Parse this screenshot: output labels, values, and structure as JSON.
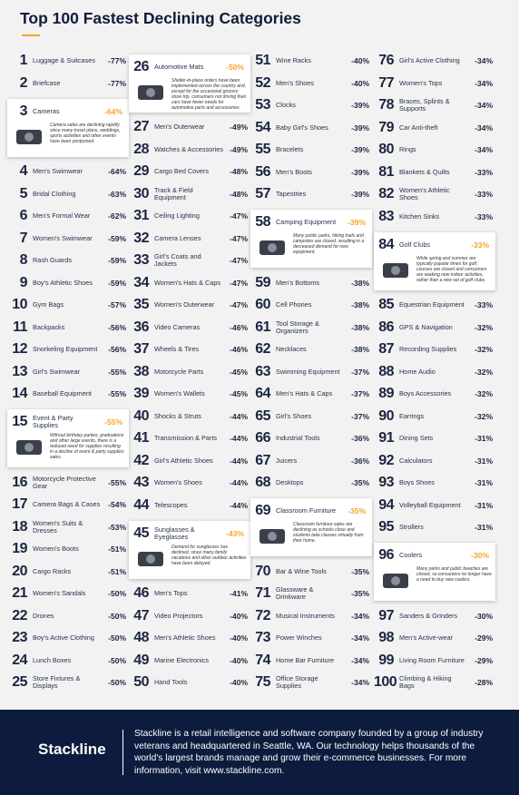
{
  "title": "Top 100 Fastest Declining Categories",
  "items": [
    {
      "rank": 1,
      "name": "Luggage & Suitcases",
      "change": "-77%"
    },
    {
      "rank": 2,
      "name": "Briefcase",
      "change": "-77%"
    },
    {
      "rank": 3,
      "name": "Cameras",
      "change": "-64%",
      "description": "Camera sales are declining rapidly since many travel plans, weddings, sports activities and other events have been postponed."
    },
    {
      "rank": 4,
      "name": "Men's Swimwear",
      "change": "-64%"
    },
    {
      "rank": 5,
      "name": "Bridal Clothing",
      "change": "-63%"
    },
    {
      "rank": 6,
      "name": "Men's Formal Wear",
      "change": "-62%"
    },
    {
      "rank": 7,
      "name": "Women's Swimwear",
      "change": "-59%"
    },
    {
      "rank": 8,
      "name": "Rash Guards",
      "change": "-59%"
    },
    {
      "rank": 9,
      "name": "Boy's Athletic Shoes",
      "change": "-59%"
    },
    {
      "rank": 10,
      "name": "Gym Bags",
      "change": "-57%"
    },
    {
      "rank": 11,
      "name": "Backpacks",
      "change": "-56%"
    },
    {
      "rank": 12,
      "name": "Snorkeling Equipment",
      "change": "-56%"
    },
    {
      "rank": 13,
      "name": "Girl's Swimwear",
      "change": "-55%"
    },
    {
      "rank": 14,
      "name": "Baseball Equipment",
      "change": "-55%"
    },
    {
      "rank": 15,
      "name": "Event & Party Supplies",
      "change": "-55%",
      "description": "Without birthday parties, graduations and other large events, there is a reduced need for supplies resulting in a decline of event & party supplies sales."
    },
    {
      "rank": 16,
      "name": "Motorcycle Protective Gear",
      "change": "-55%"
    },
    {
      "rank": 17,
      "name": "Camera Bags & Cases",
      "change": "-54%"
    },
    {
      "rank": 18,
      "name": "Women's Suits & Dresses",
      "change": "-53%"
    },
    {
      "rank": 19,
      "name": "Women's Boots",
      "change": "-51%"
    },
    {
      "rank": 20,
      "name": "Cargo Racks",
      "change": "-51%"
    },
    {
      "rank": 21,
      "name": "Women's Sandals",
      "change": "-50%"
    },
    {
      "rank": 22,
      "name": "Drones",
      "change": "-50%"
    },
    {
      "rank": 23,
      "name": "Boy's Active Clothing",
      "change": "-50%"
    },
    {
      "rank": 24,
      "name": "Lunch Boxes",
      "change": "-50%"
    },
    {
      "rank": 25,
      "name": "Store Fixtures & Displays",
      "change": "-50%"
    },
    {
      "rank": 26,
      "name": "Automotive Mats",
      "change": "-50%",
      "description": "Shelter-in-place orders have been implemented across the country and, except for the occasional grocery store trip, consumers not driving their cars have fewer needs for automotive parts and accessories."
    },
    {
      "rank": 27,
      "name": "Men's Outerwear",
      "change": "-49%"
    },
    {
      "rank": 28,
      "name": "Watches & Accessories",
      "change": "-49%"
    },
    {
      "rank": 29,
      "name": "Cargo Bed Covers",
      "change": "-48%"
    },
    {
      "rank": 30,
      "name": "Track & Field Equipment",
      "change": "-48%"
    },
    {
      "rank": 31,
      "name": "Ceiling Lighting",
      "change": "-47%"
    },
    {
      "rank": 32,
      "name": "Camera Lenses",
      "change": "-47%"
    },
    {
      "rank": 33,
      "name": "Girl's Coats and Jackets",
      "change": "-47%"
    },
    {
      "rank": 34,
      "name": "Women's Hats & Caps",
      "change": "-47%"
    },
    {
      "rank": 35,
      "name": "Women's Outerwear",
      "change": "-47%"
    },
    {
      "rank": 36,
      "name": "Video Cameras",
      "change": "-46%"
    },
    {
      "rank": 37,
      "name": "Wheels & Tires",
      "change": "-46%"
    },
    {
      "rank": 38,
      "name": "Motorcycle Parts",
      "change": "-45%"
    },
    {
      "rank": 39,
      "name": "Women's Wallets",
      "change": "-45%"
    },
    {
      "rank": 40,
      "name": "Shocks & Struts",
      "change": "-44%"
    },
    {
      "rank": 41,
      "name": "Transmission & Parts",
      "change": "-44%"
    },
    {
      "rank": 42,
      "name": "Girl's Athletic Shoes",
      "change": "-44%"
    },
    {
      "rank": 43,
      "name": "Women's Shoes",
      "change": "-44%"
    },
    {
      "rank": 44,
      "name": "Telescopes",
      "change": "-44%"
    },
    {
      "rank": 45,
      "name": "Sunglasses & Eyeglasses",
      "change": "-43%",
      "description": "Demand for sunglasses has declined, since many family vacations and other outdoor activities have been delayed."
    },
    {
      "rank": 46,
      "name": "Men's Tops",
      "change": "-41%"
    },
    {
      "rank": 47,
      "name": "Video Projectors",
      "change": "-40%"
    },
    {
      "rank": 48,
      "name": "Men's Athletic Shoes",
      "change": "-40%"
    },
    {
      "rank": 49,
      "name": "Marine Electronics",
      "change": "-40%"
    },
    {
      "rank": 50,
      "name": "Hand Tools",
      "change": "-40%"
    },
    {
      "rank": 51,
      "name": "Wine Racks",
      "change": "-40%"
    },
    {
      "rank": 52,
      "name": "Men's Shoes",
      "change": "-40%"
    },
    {
      "rank": 53,
      "name": "Clocks",
      "change": "-39%"
    },
    {
      "rank": 54,
      "name": "Baby Girl's Shoes",
      "change": "-39%"
    },
    {
      "rank": 55,
      "name": "Bracelets",
      "change": "-39%"
    },
    {
      "rank": 56,
      "name": "Men's Boots",
      "change": "-39%"
    },
    {
      "rank": 57,
      "name": "Tapestries",
      "change": "-39%"
    },
    {
      "rank": 58,
      "name": "Camping Equipment",
      "change": "-39%",
      "description": "Many public parks, hiking trails and campsites are closed, resulting in a decreased demand for new equipment."
    },
    {
      "rank": 59,
      "name": "Men's Bottoms",
      "change": "-38%"
    },
    {
      "rank": 60,
      "name": "Cell Phones",
      "change": "-38%"
    },
    {
      "rank": 61,
      "name": "Tool Storage & Organizers",
      "change": "-38%"
    },
    {
      "rank": 62,
      "name": "Necklaces",
      "change": "-38%"
    },
    {
      "rank": 63,
      "name": "Swimming Equipment",
      "change": "-37%"
    },
    {
      "rank": 64,
      "name": "Men's Hats & Caps",
      "change": "-37%"
    },
    {
      "rank": 65,
      "name": "Girl's Shoes",
      "change": "-37%"
    },
    {
      "rank": 66,
      "name": "Industrial Tools",
      "change": "-36%"
    },
    {
      "rank": 67,
      "name": "Juicers",
      "change": "-36%"
    },
    {
      "rank": 68,
      "name": "Desktops",
      "change": "-35%"
    },
    {
      "rank": 69,
      "name": "Classroom Furniture",
      "change": "-35%",
      "description": "Classroom furniture sales are declining as schools close and students take classes virtually from their home."
    },
    {
      "rank": 70,
      "name": "Bar & Wine Tools",
      "change": "-35%"
    },
    {
      "rank": 71,
      "name": "Glassware & Drinkware",
      "change": "-35%"
    },
    {
      "rank": 72,
      "name": "Musical Instruments",
      "change": "-34%"
    },
    {
      "rank": 73,
      "name": "Power Winches",
      "change": "-34%"
    },
    {
      "rank": 74,
      "name": "Home Bar Furniture",
      "change": "-34%"
    },
    {
      "rank": 75,
      "name": "Office Storage Supplies",
      "change": "-34%"
    },
    {
      "rank": 76,
      "name": "Girl's Active Clothing",
      "change": "-34%"
    },
    {
      "rank": 77,
      "name": "Women's Tops",
      "change": "-34%"
    },
    {
      "rank": 78,
      "name": "Braces, Splints & Supports",
      "change": "-34%"
    },
    {
      "rank": 79,
      "name": "Car Anti-theft",
      "change": "-34%"
    },
    {
      "rank": 80,
      "name": "Rings",
      "change": "-34%"
    },
    {
      "rank": 81,
      "name": "Blankets & Quilts",
      "change": "-33%"
    },
    {
      "rank": 82,
      "name": "Women's Athletic Shoes",
      "change": "-33%"
    },
    {
      "rank": 83,
      "name": "Kitchen Sinks",
      "change": "-33%"
    },
    {
      "rank": 84,
      "name": "Golf Clubs",
      "change": "-33%",
      "description": "While spring and summer are typically popular times for golf, courses are closed and consumers are seeking new indoor activities, rather than a new set of golf clubs."
    },
    {
      "rank": 85,
      "name": "Equestrian Equipment",
      "change": "-33%"
    },
    {
      "rank": 86,
      "name": "GPS & Navigation",
      "change": "-32%"
    },
    {
      "rank": 87,
      "name": "Recording Supplies",
      "change": "-32%"
    },
    {
      "rank": 88,
      "name": "Home Audio",
      "change": "-32%"
    },
    {
      "rank": 89,
      "name": "Boys Accessories",
      "change": "-32%"
    },
    {
      "rank": 90,
      "name": "Earrings",
      "change": "-32%"
    },
    {
      "rank": 91,
      "name": "Dining Sets",
      "change": "-31%"
    },
    {
      "rank": 92,
      "name": "Calculators",
      "change": "-31%"
    },
    {
      "rank": 93,
      "name": "Boys Shoes",
      "change": "-31%"
    },
    {
      "rank": 94,
      "name": "Volleyball Equipment",
      "change": "-31%"
    },
    {
      "rank": 95,
      "name": "Strollers",
      "change": "-31%"
    },
    {
      "rank": 96,
      "name": "Coolers",
      "change": "-30%",
      "description": "Many parks and public beaches are closed, so consumers no longer have a need to buy new coolers."
    },
    {
      "rank": 97,
      "name": "Sanders & Grinders",
      "change": "-30%"
    },
    {
      "rank": 98,
      "name": "Men's Active-wear",
      "change": "-29%"
    },
    {
      "rank": 99,
      "name": "Living Room Furniture",
      "change": "-29%"
    },
    {
      "rank": 100,
      "name": "Climbing & Hiking Bags",
      "change": "-28%"
    }
  ],
  "footer": {
    "logo": "Stackline",
    "text": "Stackline is a retail intelligence and software company founded by a group of industry veterans and headquartered in Seattle, WA. Our technology helps thousands of the world's largest brands manage and grow their e-commerce businesses. For more information, visit www.stackline.com."
  }
}
